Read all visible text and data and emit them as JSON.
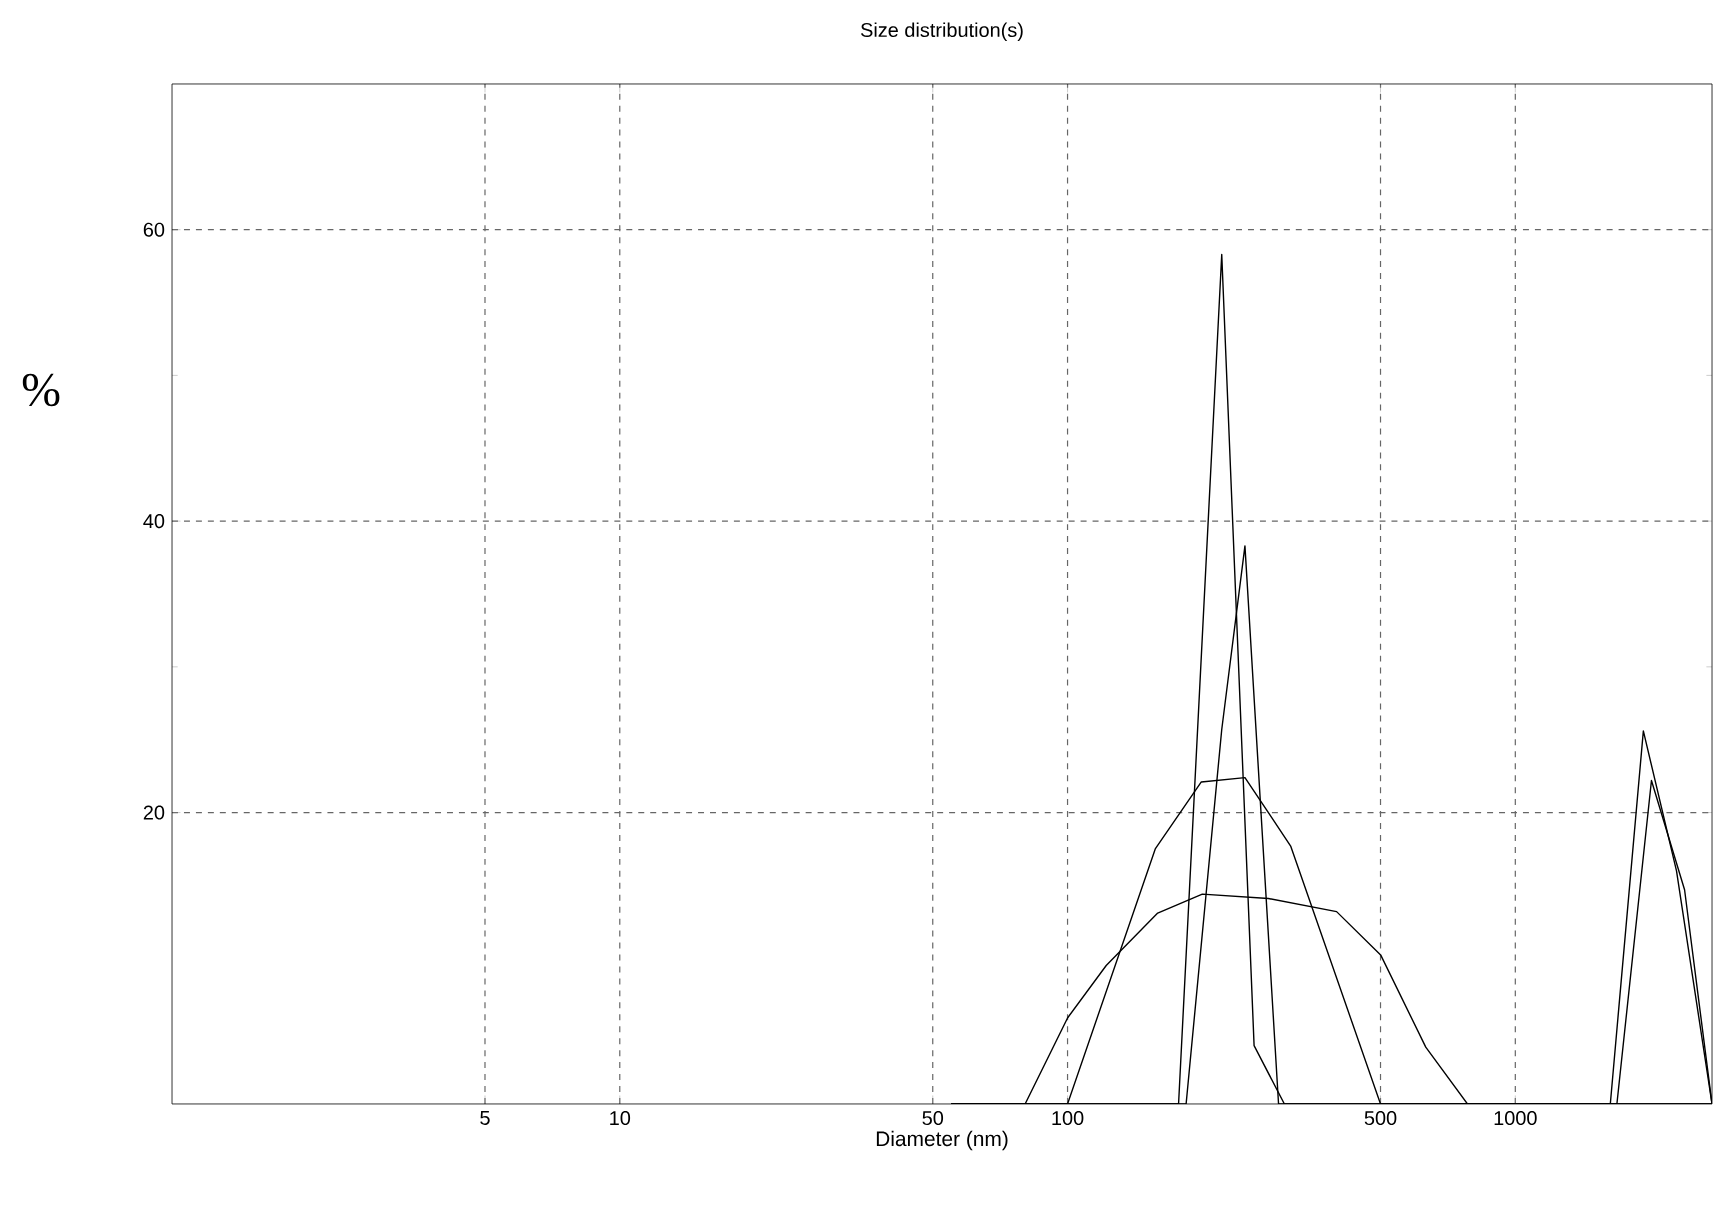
{
  "chart_data": {
    "type": "line",
    "title": "Size distribution(s)",
    "xlabel": "Diameter (nm)",
    "ylabel": "%",
    "log": "x",
    "grid": true,
    "line_style": "solid",
    "marker": "none",
    "xlim": [
      1,
      2750
    ],
    "xticks": [
      5,
      10,
      50,
      100,
      500,
      1000
    ],
    "ylim": [
      0,
      70
    ],
    "yticks": [
      20,
      40,
      60
    ],
    "series": [
      {
        "color": "#000000",
        "x": [
          55,
          177,
          221,
          261,
          305,
          1630,
          1932,
          2291,
          2750
        ],
        "values": [
          0,
          0,
          58.3,
          4.0,
          0,
          0,
          25.6,
          16.0,
          0
        ]
      },
      {
        "color": "#000000",
        "x": [
          55,
          184,
          221,
          249,
          296,
          1686,
          2014,
          2388,
          2750
        ],
        "values": [
          0,
          0,
          25.7,
          38.3,
          0,
          0,
          22.2,
          14.7,
          0
        ]
      },
      {
        "color": "#000000",
        "x": [
          55,
          100,
          157,
          199,
          249,
          315,
          500,
          2750
        ],
        "values": [
          0,
          0,
          17.5,
          22.1,
          22.4,
          17.7,
          0,
          0
        ]
      },
      {
        "color": "#000000",
        "x": [
          55,
          80.4,
          100,
          122,
          159,
          200,
          281,
          399,
          501,
          631,
          782,
          2750
        ],
        "values": [
          0,
          0,
          5.9,
          9.5,
          13.1,
          14.4,
          14.1,
          13.2,
          10.2,
          3.9,
          0,
          0
        ]
      }
    ]
  }
}
